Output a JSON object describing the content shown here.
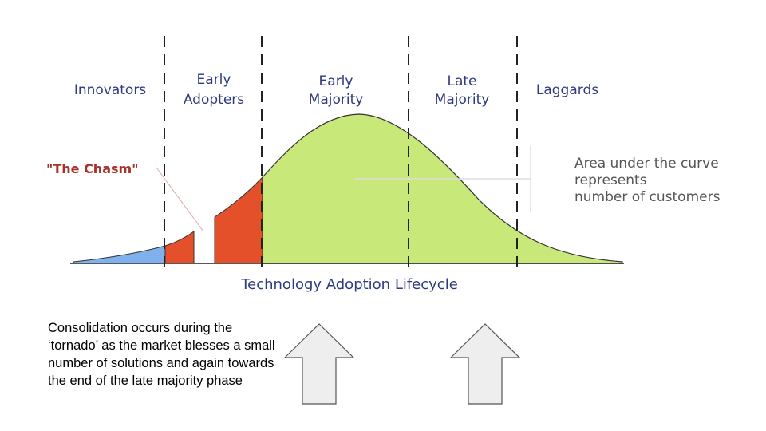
{
  "segments": {
    "innovators": "Innovators",
    "early_adopters": [
      "Early",
      "Adopters"
    ],
    "early_majority": [
      "Early",
      "Majority"
    ],
    "late_majority": [
      "Late",
      "Majority"
    ],
    "laggards": "Laggards"
  },
  "chasm_label": "\"The Chasm\"",
  "axis_title": "Technology Adoption Lifecycle",
  "note_lines": [
    "Area under the curve",
    "represents",
    "number of customers"
  ],
  "caption": "Consolidation occurs during the ‘tornado’ as the market blesses a small number of solutions and again towards the end of the late majority phase",
  "colors": {
    "innovators_fill": "#7fb2ec",
    "early_adopters_fill": "#e4502a",
    "majority_laggards_fill": "#c9e87a",
    "label_blue": "#2e3a80",
    "chasm_red": "#a8322a",
    "arrow_fill": "#eeeeee",
    "arrow_stroke": "#555555"
  }
}
